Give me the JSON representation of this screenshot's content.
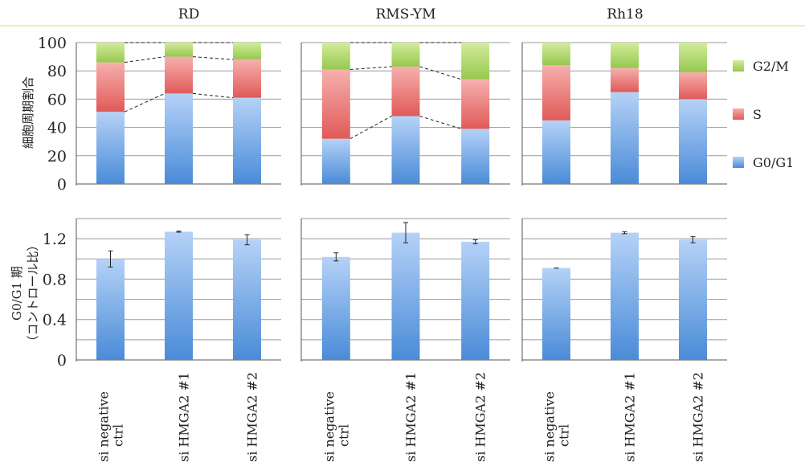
{
  "chart_data": [
    {
      "type": "bar",
      "stacked": true,
      "title": "RD",
      "categories": [
        "si negative ctrl",
        "si HMGA2 #1",
        "si HMGA2 #2"
      ],
      "ylabel": "細胞周期割合",
      "ylim": [
        0,
        100
      ],
      "yticks": [
        "0",
        "20",
        "40",
        "60",
        "80",
        "100"
      ],
      "series": [
        {
          "name": "G0/G1",
          "values": [
            51,
            64,
            61
          ]
        },
        {
          "name": "S",
          "values": [
            35,
            26,
            27
          ]
        },
        {
          "name": "G2/M",
          "values": [
            14,
            10,
            12
          ]
        }
      ],
      "connector_lines": true
    },
    {
      "type": "bar",
      "stacked": true,
      "title": "RMS-YM",
      "categories": [
        "si negative ctrl",
        "si HMGA2 #1",
        "si HMGA2 #2"
      ],
      "ylim": [
        0,
        100
      ],
      "series": [
        {
          "name": "G0/G1",
          "values": [
            32,
            48,
            39
          ]
        },
        {
          "name": "S",
          "values": [
            49,
            35,
            35
          ]
        },
        {
          "name": "G2/M",
          "values": [
            19,
            17,
            26
          ]
        }
      ],
      "connector_lines": true
    },
    {
      "type": "bar",
      "stacked": true,
      "title": "Rh18",
      "categories": [
        "si negative ctrl",
        "si HMGA2 #1",
        "si HMGA2 #2"
      ],
      "ylim": [
        0,
        100
      ],
      "series": [
        {
          "name": "G0/G1",
          "values": [
            45,
            65,
            60
          ]
        },
        {
          "name": "S",
          "values": [
            39,
            17,
            19
          ]
        },
        {
          "name": "G2/M",
          "values": [
            16,
            18,
            21
          ]
        }
      ],
      "connector_lines": false
    },
    {
      "type": "bar",
      "title": "",
      "categories": [
        "si negative ctrl",
        "si HMGA2 #1",
        "si HMGA2 #2"
      ],
      "ylabel_lines": [
        "G0/G1 期",
        "（コントロール比）"
      ],
      "ylim": [
        0,
        1.4
      ],
      "yticks": [
        "0",
        "0.4",
        "0.8",
        "1.2"
      ],
      "values": [
        1.0,
        1.27,
        1.19
      ],
      "errors": [
        0.08,
        0.005,
        0.05
      ]
    },
    {
      "type": "bar",
      "title": "",
      "categories": [
        "si negative ctrl",
        "si HMGA2 #1",
        "si HMGA2 #2"
      ],
      "ylim": [
        0,
        1.4
      ],
      "values": [
        1.02,
        1.26,
        1.17
      ],
      "errors": [
        0.04,
        0.1,
        0.02
      ]
    },
    {
      "type": "bar",
      "title": "",
      "categories": [
        "si negative ctrl",
        "si HMGA2 #1",
        "si HMGA2 #2"
      ],
      "ylim": [
        0,
        1.4
      ],
      "values": [
        0.91,
        1.26,
        1.19
      ],
      "errors": [
        0.0,
        0.01,
        0.03
      ]
    }
  ],
  "legend": {
    "placement": "right",
    "items": [
      {
        "label": "G2/M",
        "color": "#a9d46a"
      },
      {
        "label": "S",
        "color": "#e46c6c"
      },
      {
        "label": "G0/G1",
        "color": "#6aa2e0"
      }
    ]
  },
  "colors": {
    "g0g1_top": "#b5d2f7",
    "g0g1_bottom": "#4a8bd8",
    "s_top": "#f6b0ae",
    "s_bottom": "#e05a58",
    "g2m_top": "#d2ec9b",
    "g2m_bottom": "#96c84e",
    "grid": "#9a9a9a",
    "axis": "#555555",
    "top_rule": "#f2d46e"
  }
}
